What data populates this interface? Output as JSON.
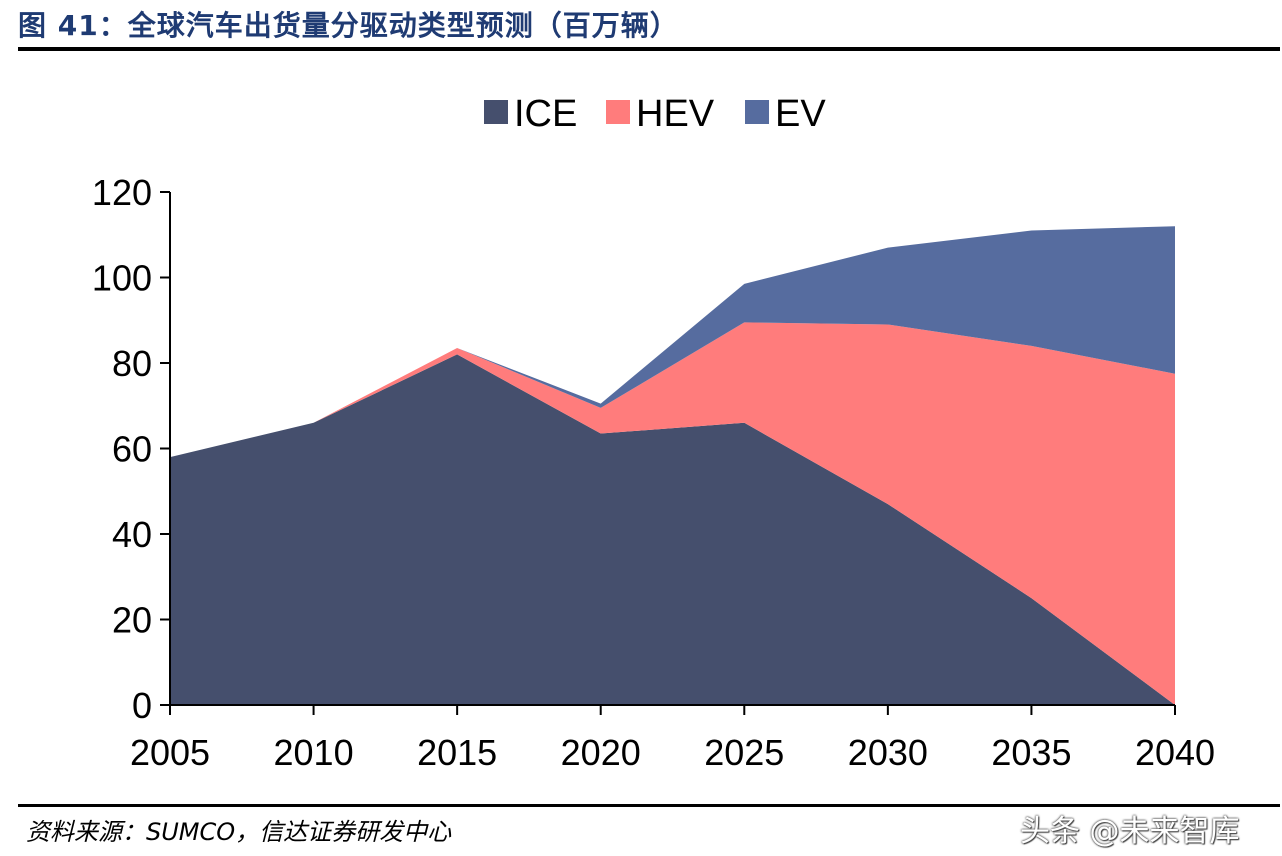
{
  "header": {
    "title": "图 41：全球汽车出货量分驱动类型预测（百万辆）"
  },
  "footer": {
    "source": "资料来源：SUMCO，信达证券研发中心",
    "watermark": "头条 @未来智库"
  },
  "chart_data": {
    "type": "area",
    "stacked": true,
    "x": [
      "2005",
      "2010",
      "2015",
      "2020",
      "2025",
      "2030",
      "2035",
      "2040"
    ],
    "ylim": [
      0,
      120
    ],
    "yticks": [
      0,
      20,
      40,
      60,
      80,
      100,
      120
    ],
    "legend_position": "top-center",
    "grid": false,
    "title": "",
    "xlabel": "",
    "ylabel": "",
    "series": [
      {
        "name": "ICE",
        "color": "#454f6d",
        "values": [
          58,
          66,
          82,
          63.5,
          66,
          47,
          25,
          0
        ]
      },
      {
        "name": "HEV",
        "color": "#ff7c7c",
        "values": [
          0,
          0,
          1.5,
          6,
          23.5,
          42,
          59,
          77.5
        ]
      },
      {
        "name": "EV",
        "color": "#566c9f",
        "values": [
          0,
          0,
          0,
          1,
          9,
          18,
          27,
          34.5
        ]
      }
    ]
  }
}
